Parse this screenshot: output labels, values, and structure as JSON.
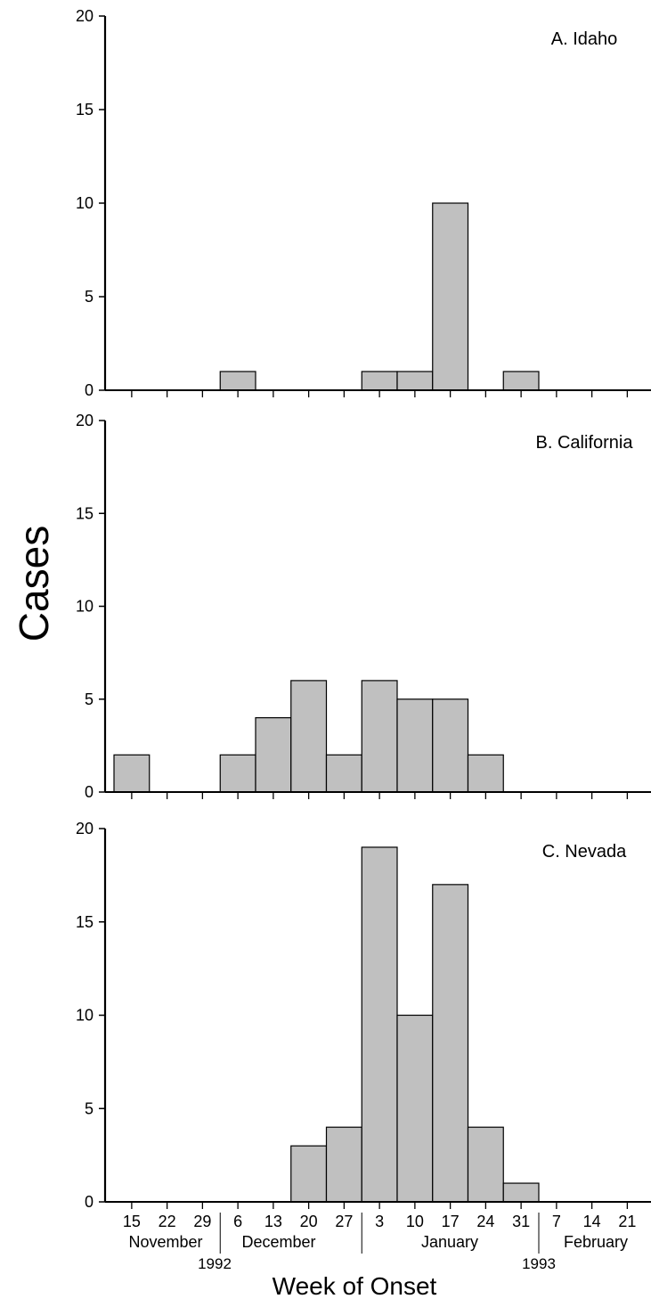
{
  "chart_data": [
    {
      "type": "bar",
      "title": "A.  Idaho",
      "categories": [
        "Nov 15",
        "Nov 22",
        "Nov 29",
        "Dec 6",
        "Dec 13",
        "Dec 20",
        "Dec 27",
        "Jan 3",
        "Jan 10",
        "Jan 17",
        "Jan 24",
        "Jan 31",
        "Feb 7",
        "Feb 14",
        "Feb 21"
      ],
      "values": [
        0,
        0,
        0,
        1,
        0,
        0,
        0,
        1,
        1,
        10,
        0,
        1,
        0,
        0,
        0
      ],
      "ylim": [
        0,
        20
      ],
      "yticks": [
        "0",
        "5",
        "10",
        "15",
        "20"
      ],
      "grid": false
    },
    {
      "type": "bar",
      "title": "B.  California",
      "categories": [
        "Nov 15",
        "Nov 22",
        "Nov 29",
        "Dec 6",
        "Dec 13",
        "Dec 20",
        "Dec 27",
        "Jan 3",
        "Jan 10",
        "Jan 17",
        "Jan 24",
        "Jan 31",
        "Feb 7",
        "Feb 14",
        "Feb 21"
      ],
      "values": [
        2,
        0,
        0,
        2,
        4,
        6,
        2,
        6,
        5,
        5,
        2,
        0,
        0,
        0,
        0
      ],
      "ylim": [
        0,
        20
      ],
      "yticks": [
        "0",
        "5",
        "10",
        "15",
        "20"
      ],
      "grid": false
    },
    {
      "type": "bar",
      "title": "C.  Nevada",
      "categories": [
        "Nov 15",
        "Nov 22",
        "Nov 29",
        "Dec 6",
        "Dec 13",
        "Dec 20",
        "Dec 27",
        "Jan 3",
        "Jan 10",
        "Jan 17",
        "Jan 24",
        "Jan 31",
        "Feb 7",
        "Feb 14",
        "Feb 21"
      ],
      "values": [
        0,
        0,
        0,
        0,
        0,
        3,
        4,
        19,
        10,
        17,
        4,
        1,
        0,
        0,
        0
      ],
      "ylim": [
        0,
        20
      ],
      "yticks": [
        "0",
        "5",
        "10",
        "15",
        "20"
      ],
      "grid": false
    }
  ],
  "ylabel": "Cases",
  "xlabel": "Week of Onset",
  "x_tick_labels": [
    "15",
    "22",
    "29",
    "6",
    "13",
    "20",
    "27",
    "3",
    "10",
    "17",
    "24",
    "31",
    "7",
    "14",
    "21"
  ],
  "months": [
    "November",
    "December",
    "January",
    "February"
  ],
  "years": [
    "1992",
    "1993"
  ],
  "colors": {
    "bar_fill": "#c0c0c0",
    "bar_stroke": "#000000",
    "axis": "#000000"
  }
}
